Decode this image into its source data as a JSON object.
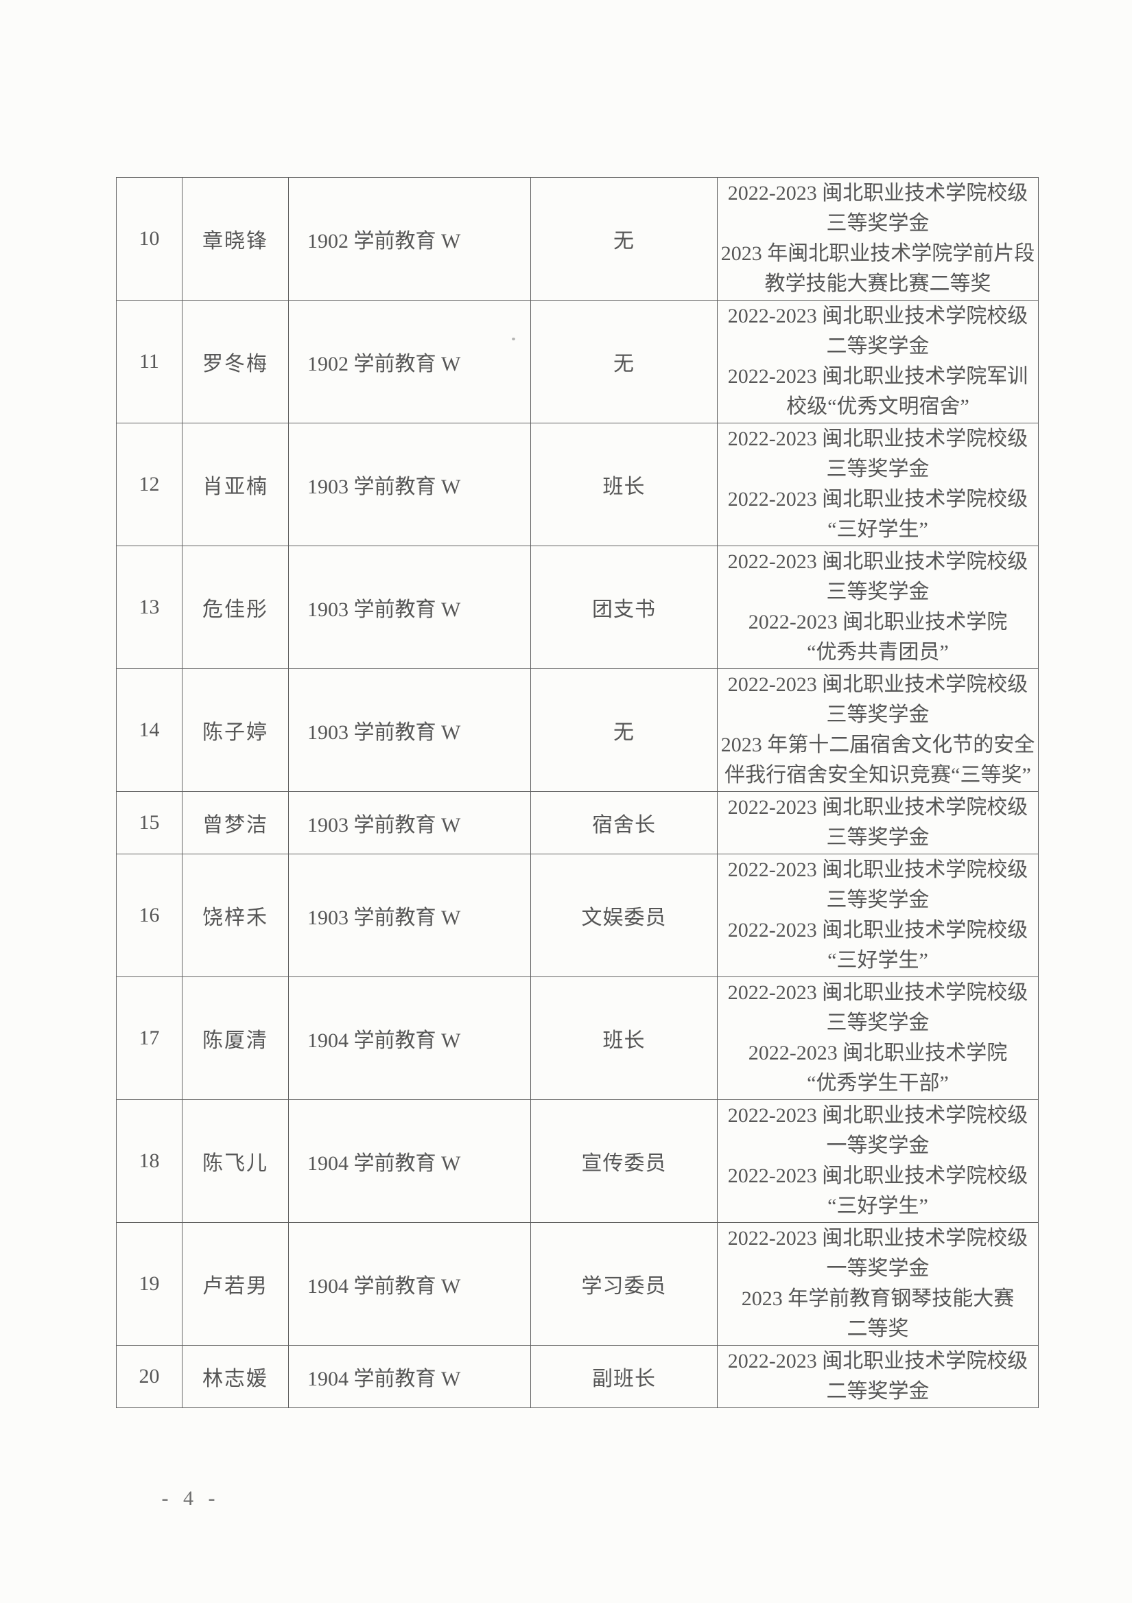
{
  "page": {
    "number_label": "- 4 -"
  },
  "table": {
    "rows": [
      {
        "seq": "10",
        "name": "章晓锋",
        "class": "1902 学前教育 W",
        "position": "无",
        "awards": [
          "2022-2023 闽北职业技术学院校级",
          "三等奖学金",
          "2023 年闽北职业技术学院学前片段",
          "教学技能大赛比赛二等奖"
        ]
      },
      {
        "seq": "11",
        "name": "罗冬梅",
        "class": "1902 学前教育 W",
        "position": "无",
        "awards": [
          "2022-2023 闽北职业技术学院校级",
          "二等奖学金",
          "2022-2023 闽北职业技术学院军训",
          "校级“优秀文明宿舍”"
        ]
      },
      {
        "seq": "12",
        "name": "肖亚楠",
        "class": "1903 学前教育 W",
        "position": "班长",
        "awards": [
          "2022-2023 闽北职业技术学院校级",
          "三等奖学金",
          "2022-2023 闽北职业技术学院校级",
          "“三好学生”"
        ]
      },
      {
        "seq": "13",
        "name": "危佳彤",
        "class": "1903 学前教育 W",
        "position": "团支书",
        "awards": [
          "2022-2023 闽北职业技术学院校级",
          "三等奖学金",
          "2022-2023 闽北职业技术学院",
          "“优秀共青团员”"
        ]
      },
      {
        "seq": "14",
        "name": "陈子婷",
        "class": "1903 学前教育 W",
        "position": "无",
        "awards": [
          "2022-2023 闽北职业技术学院校级",
          "三等奖学金",
          "2023 年第十二届宿舍文化节的安全",
          "伴我行宿舍安全知识竞赛“三等奖”"
        ]
      },
      {
        "seq": "15",
        "name": "曾梦洁",
        "class": "1903 学前教育 W",
        "position": "宿舍长",
        "awards": [
          "2022-2023 闽北职业技术学院校级",
          "三等奖学金"
        ]
      },
      {
        "seq": "16",
        "name": "饶梓禾",
        "class": "1903 学前教育 W",
        "position": "文娱委员",
        "awards": [
          "2022-2023 闽北职业技术学院校级",
          "三等奖学金",
          "2022-2023 闽北职业技术学院校级",
          "“三好学生”"
        ]
      },
      {
        "seq": "17",
        "name": "陈厦清",
        "class": "1904 学前教育 W",
        "position": "班长",
        "awards": [
          "2022-2023 闽北职业技术学院校级",
          "三等奖学金",
          "2022-2023 闽北职业技术学院",
          "“优秀学生干部”"
        ]
      },
      {
        "seq": "18",
        "name": "陈飞儿",
        "class": "1904 学前教育 W",
        "position": "宣传委员",
        "awards": [
          "2022-2023 闽北职业技术学院校级",
          "一等奖学金",
          "2022-2023 闽北职业技术学院校级",
          "“三好学生”"
        ]
      },
      {
        "seq": "19",
        "name": "卢若男",
        "class": "1904 学前教育 W",
        "position": "学习委员",
        "awards": [
          "2022-2023 闽北职业技术学院校级",
          "一等奖学金",
          "2023 年学前教育钢琴技能大赛",
          "二等奖"
        ]
      },
      {
        "seq": "20",
        "name": "林志媛",
        "class": "1904 学前教育 W",
        "position": "副班长",
        "awards": [
          "2022-2023 闽北职业技术学院校级",
          "二等奖学金"
        ]
      }
    ]
  }
}
